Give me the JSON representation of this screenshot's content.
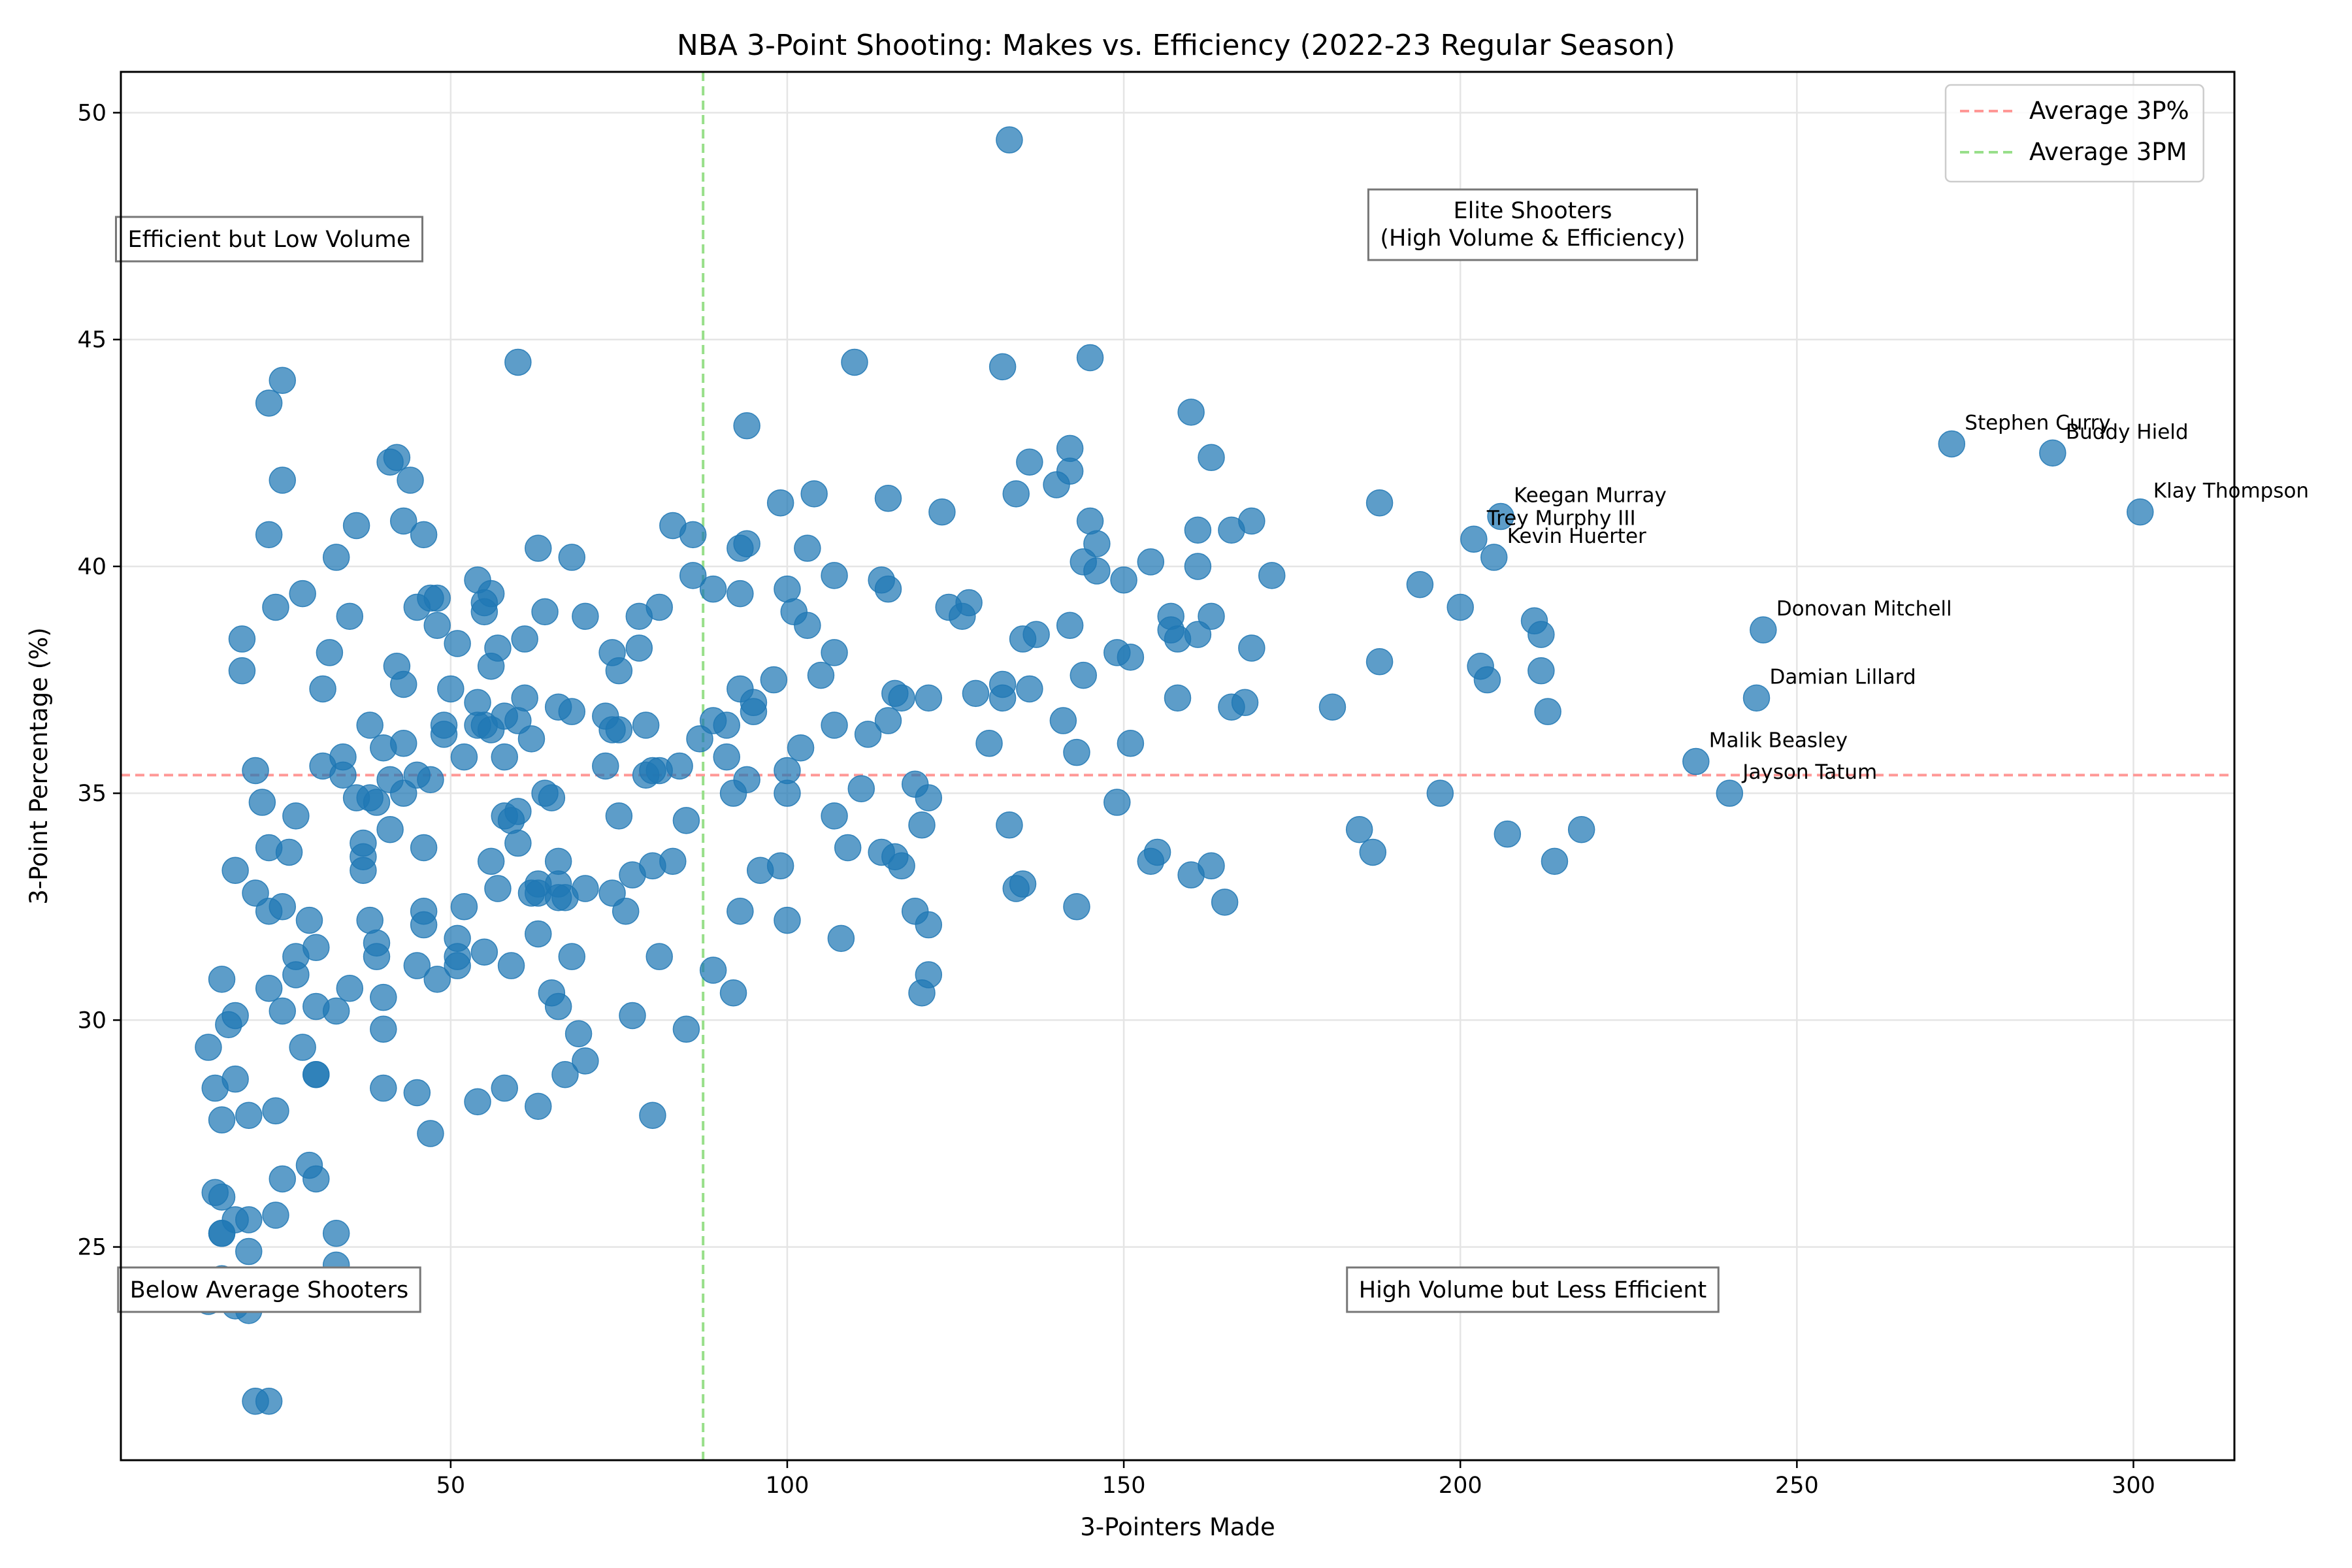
{
  "chart_data": {
    "type": "scatter",
    "title": "NBA 3-Point Shooting: Makes vs. Efficiency (2022-23 Regular Season)",
    "xlabel": "3-Pointers Made",
    "ylabel": "3-Point Percentage (%)",
    "xlim": [
      1,
      315
    ],
    "ylim": [
      20.3,
      50.9
    ],
    "xticks": [
      50,
      100,
      150,
      200,
      250,
      300
    ],
    "yticks": [
      25,
      30,
      35,
      40,
      45,
      50
    ],
    "grid": true,
    "point_color": "#1f77b4",
    "reference_lines": {
      "avg_3p_pct": {
        "label": "Average 3P%",
        "value": 35.4,
        "color": "#ff9896"
      },
      "avg_3pm": {
        "label": "Average 3PM",
        "value": 87.5,
        "color": "#98df8a"
      }
    },
    "legend_position": "top-right",
    "region_labels": {
      "top_left": "Efficient but Low Volume",
      "top_right_line1": "Elite Shooters",
      "top_right_line2": "(High Volume & Efficiency)",
      "bottom_left": "Below Average Shooters",
      "bottom_right": "High Volume but Less Efficient"
    },
    "labeled_players": [
      {
        "name": "Stephen Curry",
        "x": 273,
        "y": 42.7
      },
      {
        "name": "Buddy Hield",
        "x": 288,
        "y": 42.5
      },
      {
        "name": "Klay Thompson",
        "x": 301,
        "y": 41.2
      },
      {
        "name": "Keegan Murray",
        "x": 206,
        "y": 41.1
      },
      {
        "name": "Trey Murphy III",
        "x": 202,
        "y": 40.6
      },
      {
        "name": "Kevin Huerter",
        "x": 205,
        "y": 40.2
      },
      {
        "name": "Donovan Mitchell",
        "x": 245,
        "y": 38.6
      },
      {
        "name": "Damian Lillard",
        "x": 244,
        "y": 37.1
      },
      {
        "name": "Malik Beasley",
        "x": 235,
        "y": 35.7
      },
      {
        "name": "Jayson Tatum",
        "x": 240,
        "y": 35.0
      }
    ],
    "points": [
      [
        273,
        42.7
      ],
      [
        288,
        42.5
      ],
      [
        301,
        41.2
      ],
      [
        206,
        41.1
      ],
      [
        202,
        40.6
      ],
      [
        205,
        40.2
      ],
      [
        245,
        38.6
      ],
      [
        244,
        37.1
      ],
      [
        235,
        35.7
      ],
      [
        240,
        35.0
      ],
      [
        133,
        49.4
      ],
      [
        25,
        44.1
      ],
      [
        60,
        44.5
      ],
      [
        110,
        44.5
      ],
      [
        132,
        44.4
      ],
      [
        145,
        44.6
      ],
      [
        23,
        43.6
      ],
      [
        94,
        43.1
      ],
      [
        160,
        43.4
      ],
      [
        142,
        42.6
      ],
      [
        163,
        42.4
      ],
      [
        42,
        42.4
      ],
      [
        41,
        42.3
      ],
      [
        136,
        42.3
      ],
      [
        142,
        42.1
      ],
      [
        25,
        41.9
      ],
      [
        44,
        41.9
      ],
      [
        104,
        41.6
      ],
      [
        115,
        41.5
      ],
      [
        134,
        41.6
      ],
      [
        140,
        41.8
      ],
      [
        99,
        41.4
      ],
      [
        123,
        41.2
      ],
      [
        188,
        41.4
      ],
      [
        23,
        40.7
      ],
      [
        43,
        41.0
      ],
      [
        46,
        40.7
      ],
      [
        36,
        40.9
      ],
      [
        83,
        40.9
      ],
      [
        86,
        40.7
      ],
      [
        93,
        40.4
      ],
      [
        94,
        40.5
      ],
      [
        103,
        40.4
      ],
      [
        145,
        41.0
      ],
      [
        146,
        40.5
      ],
      [
        161,
        40.8
      ],
      [
        166,
        40.8
      ],
      [
        169,
        41.0
      ],
      [
        63,
        40.4
      ],
      [
        68,
        40.2
      ],
      [
        33,
        40.2
      ],
      [
        28,
        39.4
      ],
      [
        24,
        39.1
      ],
      [
        47,
        39.3
      ],
      [
        48,
        39.3
      ],
      [
        54,
        39.7
      ],
      [
        56,
        39.4
      ],
      [
        55,
        39.2
      ],
      [
        45,
        39.1
      ],
      [
        55,
        39.0
      ],
      [
        64,
        39.0
      ],
      [
        70,
        38.9
      ],
      [
        78,
        38.9
      ],
      [
        81,
        39.1
      ],
      [
        86,
        39.8
      ],
      [
        89,
        39.5
      ],
      [
        93,
        39.4
      ],
      [
        100,
        39.5
      ],
      [
        101,
        39.0
      ],
      [
        103,
        38.7
      ],
      [
        107,
        39.8
      ],
      [
        114,
        39.7
      ],
      [
        115,
        39.5
      ],
      [
        124,
        39.1
      ],
      [
        126,
        38.9
      ],
      [
        127,
        39.2
      ],
      [
        144,
        40.1
      ],
      [
        146,
        39.9
      ],
      [
        150,
        39.7
      ],
      [
        154,
        40.1
      ],
      [
        161,
        40.0
      ],
      [
        172,
        39.8
      ],
      [
        194,
        39.6
      ],
      [
        200,
        39.1
      ],
      [
        211,
        38.8
      ],
      [
        212,
        38.5
      ],
      [
        157,
        38.9
      ],
      [
        163,
        38.9
      ],
      [
        35,
        38.9
      ],
      [
        48,
        38.7
      ],
      [
        51,
        38.3
      ],
      [
        61,
        38.4
      ],
      [
        57,
        38.2
      ],
      [
        74,
        38.1
      ],
      [
        78,
        38.2
      ],
      [
        32,
        38.1
      ],
      [
        19,
        38.4
      ],
      [
        19,
        37.7
      ],
      [
        135,
        38.4
      ],
      [
        137,
        38.5
      ],
      [
        142,
        38.7
      ],
      [
        157,
        38.6
      ],
      [
        158,
        38.4
      ],
      [
        161,
        38.5
      ],
      [
        169,
        38.2
      ],
      [
        149,
        38.1
      ],
      [
        151,
        38.0
      ],
      [
        42,
        37.8
      ],
      [
        56,
        37.8
      ],
      [
        75,
        37.7
      ],
      [
        98,
        37.5
      ],
      [
        105,
        37.6
      ],
      [
        107,
        38.1
      ],
      [
        116,
        37.2
      ],
      [
        117,
        37.1
      ],
      [
        121,
        37.1
      ],
      [
        128,
        37.2
      ],
      [
        132,
        37.4
      ],
      [
        132,
        37.1
      ],
      [
        136,
        37.3
      ],
      [
        144,
        37.6
      ],
      [
        158,
        37.1
      ],
      [
        168,
        37.0
      ],
      [
        166,
        36.9
      ],
      [
        181,
        36.9
      ],
      [
        188,
        37.9
      ],
      [
        203,
        37.8
      ],
      [
        204,
        37.5
      ],
      [
        212,
        37.7
      ],
      [
        213,
        36.8
      ],
      [
        31,
        37.3
      ],
      [
        43,
        37.4
      ],
      [
        50,
        37.3
      ],
      [
        38,
        36.5
      ],
      [
        49,
        36.5
      ],
      [
        54,
        37.0
      ],
      [
        58,
        36.7
      ],
      [
        60,
        36.6
      ],
      [
        61,
        37.1
      ],
      [
        66,
        36.9
      ],
      [
        68,
        36.8
      ],
      [
        73,
        36.7
      ],
      [
        74,
        36.4
      ],
      [
        75,
        36.4
      ],
      [
        79,
        36.5
      ],
      [
        87,
        36.2
      ],
      [
        89,
        36.6
      ],
      [
        91,
        36.5
      ],
      [
        93,
        37.3
      ],
      [
        95,
        37.0
      ],
      [
        95,
        36.8
      ],
      [
        107,
        36.5
      ],
      [
        112,
        36.3
      ],
      [
        115,
        36.6
      ],
      [
        130,
        36.1
      ],
      [
        141,
        36.6
      ],
      [
        143,
        35.9
      ],
      [
        151,
        36.1
      ],
      [
        40,
        36.0
      ],
      [
        43,
        36.1
      ],
      [
        49,
        36.3
      ],
      [
        52,
        35.8
      ],
      [
        55,
        36.5
      ],
      [
        54,
        36.5
      ],
      [
        56,
        36.4
      ],
      [
        58,
        35.8
      ],
      [
        62,
        36.2
      ],
      [
        102,
        36.0
      ],
      [
        21,
        35.5
      ],
      [
        31,
        35.6
      ],
      [
        34,
        35.8
      ],
      [
        34,
        35.4
      ],
      [
        38,
        34.9
      ],
      [
        36,
        34.9
      ],
      [
        41,
        35.3
      ],
      [
        43,
        35.0
      ],
      [
        45,
        35.4
      ],
      [
        47,
        35.3
      ],
      [
        64,
        35.0
      ],
      [
        65,
        34.9
      ],
      [
        73,
        35.6
      ],
      [
        79,
        35.4
      ],
      [
        80,
        35.5
      ],
      [
        81,
        35.5
      ],
      [
        84,
        35.6
      ],
      [
        91,
        35.8
      ],
      [
        92,
        35.0
      ],
      [
        94,
        35.3
      ],
      [
        100,
        35.5
      ],
      [
        100,
        35.0
      ],
      [
        111,
        35.1
      ],
      [
        119,
        35.2
      ],
      [
        121,
        34.9
      ],
      [
        149,
        34.8
      ],
      [
        197,
        35.0
      ],
      [
        22,
        34.8
      ],
      [
        27,
        34.5
      ],
      [
        39,
        34.8
      ],
      [
        41,
        34.2
      ],
      [
        58,
        34.5
      ],
      [
        59,
        34.4
      ],
      [
        60,
        34.6
      ],
      [
        60,
        33.9
      ],
      [
        75,
        34.5
      ],
      [
        85,
        34.4
      ],
      [
        107,
        34.5
      ],
      [
        120,
        34.3
      ],
      [
        133,
        34.3
      ],
      [
        185,
        34.2
      ],
      [
        187,
        33.7
      ],
      [
        207,
        34.1
      ],
      [
        218,
        34.2
      ],
      [
        23,
        33.8
      ],
      [
        26,
        33.7
      ],
      [
        37,
        33.9
      ],
      [
        37,
        33.6
      ],
      [
        37,
        33.3
      ],
      [
        46,
        33.8
      ],
      [
        56,
        33.5
      ],
      [
        57,
        32.9
      ],
      [
        62,
        32.8
      ],
      [
        63,
        33.0
      ],
      [
        63,
        32.8
      ],
      [
        66,
        33.5
      ],
      [
        66,
        33.0
      ],
      [
        67,
        32.7
      ],
      [
        66,
        32.7
      ],
      [
        70,
        32.9
      ],
      [
        74,
        32.8
      ],
      [
        76,
        32.4
      ],
      [
        77,
        33.2
      ],
      [
        80,
        33.4
      ],
      [
        83,
        33.5
      ],
      [
        96,
        33.3
      ],
      [
        99,
        33.4
      ],
      [
        109,
        33.8
      ],
      [
        114,
        33.7
      ],
      [
        116,
        33.6
      ],
      [
        117,
        33.4
      ],
      [
        134,
        32.9
      ],
      [
        135,
        33.0
      ],
      [
        155,
        33.7
      ],
      [
        154,
        33.5
      ],
      [
        160,
        33.2
      ],
      [
        163,
        33.4
      ],
      [
        214,
        33.5
      ],
      [
        18,
        33.3
      ],
      [
        21,
        32.8
      ],
      [
        23,
        32.4
      ],
      [
        25,
        32.5
      ],
      [
        29,
        32.2
      ],
      [
        38,
        32.2
      ],
      [
        46,
        32.4
      ],
      [
        46,
        32.1
      ],
      [
        52,
        32.5
      ],
      [
        93,
        32.4
      ],
      [
        100,
        32.2
      ],
      [
        119,
        32.4
      ],
      [
        121,
        32.1
      ],
      [
        143,
        32.5
      ],
      [
        165,
        32.6
      ],
      [
        39,
        31.7
      ],
      [
        39,
        31.4
      ],
      [
        51,
        31.8
      ],
      [
        51,
        31.4
      ],
      [
        51,
        31.2
      ],
      [
        55,
        31.5
      ],
      [
        59,
        31.2
      ],
      [
        63,
        31.9
      ],
      [
        68,
        31.4
      ],
      [
        81,
        31.4
      ],
      [
        89,
        31.1
      ],
      [
        92,
        30.6
      ],
      [
        108,
        31.8
      ],
      [
        121,
        31.0
      ],
      [
        120,
        30.6
      ],
      [
        16,
        30.9
      ],
      [
        27,
        31.4
      ],
      [
        27,
        31.0
      ],
      [
        30,
        31.6
      ],
      [
        23,
        30.7
      ],
      [
        35,
        30.7
      ],
      [
        45,
        31.2
      ],
      [
        48,
        30.9
      ],
      [
        40,
        30.5
      ],
      [
        33,
        30.2
      ],
      [
        30,
        30.3
      ],
      [
        25,
        30.2
      ],
      [
        17,
        29.9
      ],
      [
        18,
        30.1
      ],
      [
        40,
        29.8
      ],
      [
        65,
        30.6
      ],
      [
        66,
        30.3
      ],
      [
        77,
        30.1
      ],
      [
        69,
        29.7
      ],
      [
        85,
        29.8
      ],
      [
        70,
        29.1
      ],
      [
        67,
        28.8
      ],
      [
        14,
        29.4
      ],
      [
        15,
        28.5
      ],
      [
        18,
        28.7
      ],
      [
        28,
        29.4
      ],
      [
        30,
        28.8
      ],
      [
        30,
        28.8
      ],
      [
        40,
        28.5
      ],
      [
        45,
        28.4
      ],
      [
        54,
        28.2
      ],
      [
        58,
        28.5
      ],
      [
        63,
        28.1
      ],
      [
        24,
        28.0
      ],
      [
        16,
        27.8
      ],
      [
        20,
        27.9
      ],
      [
        47,
        27.5
      ],
      [
        80,
        27.9
      ],
      [
        29,
        26.8
      ],
      [
        25,
        26.5
      ],
      [
        30,
        26.5
      ],
      [
        15,
        26.2
      ],
      [
        16,
        26.1
      ],
      [
        16,
        25.3
      ],
      [
        16,
        25.3
      ],
      [
        18,
        25.6
      ],
      [
        20,
        25.6
      ],
      [
        24,
        25.7
      ],
      [
        33,
        25.3
      ],
      [
        20,
        24.9
      ],
      [
        33,
        24.6
      ],
      [
        16,
        24.3
      ],
      [
        16,
        23.9
      ],
      [
        14,
        23.8
      ],
      [
        18,
        23.7
      ],
      [
        20,
        23.6
      ],
      [
        21,
        21.6
      ],
      [
        23,
        21.6
      ]
    ]
  }
}
